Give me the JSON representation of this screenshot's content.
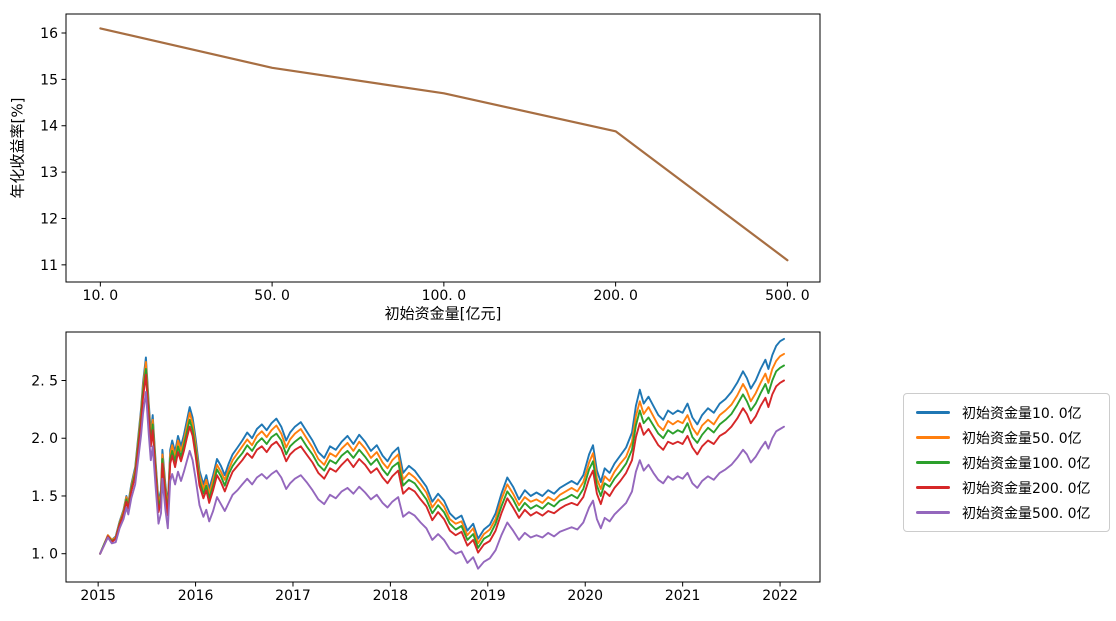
{
  "background": "#ffffff",
  "chart_data": [
    {
      "id": "annualized-return-vs-initial-capital",
      "type": "line",
      "title": "",
      "xlabel": "初始资金量[亿元]",
      "ylabel": "年化收益率[%]",
      "categories": [
        10.0,
        50.0,
        100.0,
        200.0,
        500.0
      ],
      "x_tick_labels": [
        "10. 0",
        "50. 0",
        "100. 0",
        "200. 0",
        "500. 0"
      ],
      "values": [
        16.1,
        15.25,
        14.7,
        13.88,
        11.1
      ],
      "line_color": "#a76e42",
      "yticks": [
        11,
        12,
        13,
        14,
        15,
        16
      ],
      "ylim": [
        10.63,
        16.41
      ],
      "xlim_index": [
        -0.2,
        4.19
      ],
      "grid": false,
      "legend_position": "none"
    },
    {
      "id": "cumulative-net-value-by-initial-capital",
      "type": "line",
      "title": "",
      "xlabel": "",
      "ylabel": "",
      "x": [
        2015.02,
        2015.06,
        2015.1,
        2015.14,
        2015.18,
        2015.22,
        2015.26,
        2015.29,
        2015.31,
        2015.34,
        2015.38,
        2015.41,
        2015.44,
        2015.46,
        2015.49,
        2015.52,
        2015.54,
        2015.56,
        2015.59,
        2015.62,
        2015.645,
        2015.66,
        2015.69,
        2015.715,
        2015.74,
        2015.76,
        2015.79,
        2015.82,
        2015.85,
        2015.88,
        2015.91,
        2015.94,
        2015.97,
        2016.0,
        2016.04,
        2016.08,
        2016.11,
        2016.14,
        2016.18,
        2016.22,
        2016.26,
        2016.3,
        2016.34,
        2016.38,
        2016.43,
        2016.48,
        2016.53,
        2016.58,
        2016.63,
        2016.68,
        2016.73,
        2016.78,
        2016.83,
        2016.88,
        2016.93,
        2016.97,
        2017.02,
        2017.08,
        2017.14,
        2017.2,
        2017.26,
        2017.32,
        2017.38,
        2017.44,
        2017.5,
        2017.56,
        2017.62,
        2017.68,
        2017.74,
        2017.8,
        2017.86,
        2017.92,
        2017.97,
        2018.02,
        2018.08,
        2018.13,
        2018.19,
        2018.25,
        2018.31,
        2018.37,
        2018.43,
        2018.49,
        2018.55,
        2018.61,
        2018.67,
        2018.73,
        2018.79,
        2018.85,
        2018.9,
        2018.96,
        2019.02,
        2019.08,
        2019.14,
        2019.2,
        2019.26,
        2019.32,
        2019.38,
        2019.44,
        2019.5,
        2019.56,
        2019.62,
        2019.68,
        2019.74,
        2019.8,
        2019.86,
        2019.92,
        2019.98,
        2020.04,
        2020.08,
        2020.12,
        2020.16,
        2020.2,
        2020.25,
        2020.3,
        2020.36,
        2020.42,
        2020.48,
        2020.52,
        2020.56,
        2020.6,
        2020.65,
        2020.7,
        2020.75,
        2020.8,
        2020.85,
        2020.9,
        2020.95,
        2021.0,
        2021.05,
        2021.1,
        2021.15,
        2021.2,
        2021.26,
        2021.32,
        2021.38,
        2021.44,
        2021.5,
        2021.56,
        2021.62,
        2021.66,
        2021.7,
        2021.75,
        2021.8,
        2021.85,
        2021.88,
        2021.92,
        2021.96,
        2022.0,
        2022.04
      ],
      "series": [
        {
          "name": "初始资金量10. 0亿",
          "color": "#1f77b4",
          "values": [
            1.0,
            1.08,
            1.16,
            1.12,
            1.15,
            1.28,
            1.38,
            1.5,
            1.44,
            1.6,
            1.75,
            2.0,
            2.25,
            2.48,
            2.7,
            2.3,
            2.05,
            2.2,
            1.8,
            1.45,
            1.55,
            1.9,
            1.6,
            1.42,
            1.9,
            1.98,
            1.88,
            2.02,
            1.93,
            2.03,
            2.15,
            2.27,
            2.18,
            2.0,
            1.72,
            1.6,
            1.68,
            1.56,
            1.68,
            1.82,
            1.76,
            1.68,
            1.78,
            1.86,
            1.92,
            1.98,
            2.05,
            2.0,
            2.08,
            2.12,
            2.07,
            2.13,
            2.17,
            2.1,
            1.98,
            2.05,
            2.1,
            2.14,
            2.06,
            1.98,
            1.88,
            1.83,
            1.93,
            1.9,
            1.97,
            2.02,
            1.95,
            2.03,
            1.97,
            1.89,
            1.94,
            1.85,
            1.8,
            1.87,
            1.92,
            1.7,
            1.76,
            1.72,
            1.65,
            1.58,
            1.45,
            1.52,
            1.46,
            1.35,
            1.3,
            1.33,
            1.2,
            1.26,
            1.13,
            1.21,
            1.25,
            1.35,
            1.52,
            1.66,
            1.58,
            1.47,
            1.55,
            1.5,
            1.53,
            1.5,
            1.55,
            1.52,
            1.57,
            1.6,
            1.63,
            1.6,
            1.68,
            1.86,
            1.94,
            1.72,
            1.62,
            1.74,
            1.7,
            1.78,
            1.85,
            1.92,
            2.05,
            2.28,
            2.42,
            2.3,
            2.36,
            2.28,
            2.2,
            2.16,
            2.24,
            2.21,
            2.24,
            2.22,
            2.3,
            2.18,
            2.12,
            2.2,
            2.26,
            2.22,
            2.3,
            2.34,
            2.4,
            2.48,
            2.58,
            2.52,
            2.43,
            2.5,
            2.6,
            2.68,
            2.6,
            2.72,
            2.8,
            2.84,
            2.86
          ]
        },
        {
          "name": "初始资金量50. 0亿",
          "color": "#ff7f0e",
          "values": [
            1.0,
            1.08,
            1.16,
            1.12,
            1.14,
            1.27,
            1.37,
            1.49,
            1.43,
            1.58,
            1.73,
            1.97,
            2.22,
            2.44,
            2.66,
            2.26,
            2.02,
            2.16,
            1.77,
            1.42,
            1.52,
            1.86,
            1.57,
            1.39,
            1.86,
            1.94,
            1.84,
            1.98,
            1.89,
            1.98,
            2.1,
            2.22,
            2.13,
            1.95,
            1.68,
            1.56,
            1.64,
            1.52,
            1.64,
            1.77,
            1.71,
            1.64,
            1.73,
            1.81,
            1.87,
            1.93,
            1.99,
            1.94,
            2.02,
            2.06,
            2.01,
            2.07,
            2.11,
            2.04,
            1.92,
            1.99,
            2.04,
            2.08,
            2.0,
            1.92,
            1.82,
            1.77,
            1.87,
            1.84,
            1.91,
            1.96,
            1.89,
            1.97,
            1.91,
            1.83,
            1.88,
            1.79,
            1.74,
            1.81,
            1.86,
            1.64,
            1.7,
            1.66,
            1.6,
            1.53,
            1.4,
            1.47,
            1.41,
            1.3,
            1.26,
            1.28,
            1.16,
            1.22,
            1.09,
            1.17,
            1.21,
            1.3,
            1.47,
            1.6,
            1.52,
            1.42,
            1.49,
            1.45,
            1.47,
            1.44,
            1.49,
            1.46,
            1.51,
            1.54,
            1.57,
            1.54,
            1.62,
            1.79,
            1.87,
            1.65,
            1.56,
            1.67,
            1.63,
            1.71,
            1.78,
            1.84,
            1.97,
            2.19,
            2.32,
            2.21,
            2.27,
            2.19,
            2.11,
            2.07,
            2.15,
            2.12,
            2.15,
            2.13,
            2.2,
            2.09,
            2.03,
            2.11,
            2.16,
            2.12,
            2.2,
            2.24,
            2.29,
            2.37,
            2.47,
            2.41,
            2.32,
            2.39,
            2.48,
            2.56,
            2.48,
            2.6,
            2.67,
            2.71,
            2.73
          ]
        },
        {
          "name": "初始资金量100. 0亿",
          "color": "#2ca02c",
          "values": [
            1.0,
            1.08,
            1.15,
            1.11,
            1.13,
            1.26,
            1.35,
            1.47,
            1.41,
            1.56,
            1.7,
            1.94,
            2.18,
            2.4,
            2.6,
            2.22,
            1.97,
            2.12,
            1.73,
            1.39,
            1.49,
            1.82,
            1.53,
            1.36,
            1.82,
            1.89,
            1.8,
            1.93,
            1.84,
            1.94,
            2.05,
            2.16,
            2.07,
            1.9,
            1.63,
            1.52,
            1.59,
            1.48,
            1.59,
            1.73,
            1.67,
            1.59,
            1.69,
            1.76,
            1.82,
            1.87,
            1.94,
            1.89,
            1.96,
            2.0,
            1.95,
            2.01,
            2.04,
            1.98,
            1.86,
            1.93,
            1.97,
            2.01,
            1.93,
            1.86,
            1.77,
            1.72,
            1.81,
            1.78,
            1.85,
            1.89,
            1.83,
            1.9,
            1.84,
            1.77,
            1.82,
            1.73,
            1.68,
            1.75,
            1.79,
            1.59,
            1.64,
            1.61,
            1.54,
            1.47,
            1.35,
            1.42,
            1.36,
            1.26,
            1.21,
            1.24,
            1.12,
            1.17,
            1.05,
            1.13,
            1.16,
            1.26,
            1.41,
            1.54,
            1.47,
            1.37,
            1.44,
            1.39,
            1.42,
            1.39,
            1.44,
            1.41,
            1.46,
            1.48,
            1.51,
            1.48,
            1.56,
            1.73,
            1.8,
            1.59,
            1.5,
            1.61,
            1.58,
            1.65,
            1.71,
            1.78,
            1.9,
            2.11,
            2.24,
            2.13,
            2.18,
            2.11,
            2.04,
            2.0,
            2.07,
            2.04,
            2.07,
            2.05,
            2.13,
            2.01,
            1.96,
            2.03,
            2.09,
            2.05,
            2.12,
            2.16,
            2.21,
            2.29,
            2.38,
            2.32,
            2.24,
            2.3,
            2.39,
            2.47,
            2.39,
            2.5,
            2.58,
            2.61,
            2.63
          ]
        },
        {
          "name": "初始资金量200. 0亿",
          "color": "#d62728",
          "values": [
            1.0,
            1.07,
            1.15,
            1.1,
            1.13,
            1.25,
            1.34,
            1.45,
            1.39,
            1.54,
            1.67,
            1.9,
            2.13,
            2.35,
            2.55,
            2.17,
            1.93,
            2.07,
            1.69,
            1.36,
            1.45,
            1.78,
            1.5,
            1.33,
            1.78,
            1.85,
            1.75,
            1.88,
            1.8,
            1.89,
            2.0,
            2.1,
            2.02,
            1.85,
            1.59,
            1.48,
            1.55,
            1.44,
            1.55,
            1.68,
            1.62,
            1.54,
            1.63,
            1.71,
            1.76,
            1.81,
            1.87,
            1.83,
            1.9,
            1.93,
            1.88,
            1.94,
            1.97,
            1.91,
            1.8,
            1.86,
            1.9,
            1.93,
            1.86,
            1.79,
            1.7,
            1.65,
            1.74,
            1.71,
            1.77,
            1.82,
            1.75,
            1.82,
            1.77,
            1.7,
            1.74,
            1.66,
            1.61,
            1.67,
            1.72,
            1.52,
            1.57,
            1.54,
            1.47,
            1.41,
            1.29,
            1.36,
            1.3,
            1.2,
            1.16,
            1.19,
            1.07,
            1.12,
            1.01,
            1.08,
            1.11,
            1.2,
            1.35,
            1.48,
            1.4,
            1.31,
            1.38,
            1.33,
            1.36,
            1.33,
            1.37,
            1.35,
            1.39,
            1.42,
            1.44,
            1.42,
            1.49,
            1.65,
            1.72,
            1.52,
            1.43,
            1.54,
            1.5,
            1.57,
            1.63,
            1.7,
            1.81,
            2.01,
            2.13,
            2.03,
            2.08,
            2.01,
            1.94,
            1.9,
            1.97,
            1.95,
            1.97,
            1.95,
            2.02,
            1.92,
            1.86,
            1.93,
            1.98,
            1.95,
            2.02,
            2.05,
            2.1,
            2.17,
            2.26,
            2.21,
            2.13,
            2.19,
            2.28,
            2.35,
            2.27,
            2.38,
            2.45,
            2.48,
            2.5
          ]
        },
        {
          "name": "初始资金量500. 0亿",
          "color": "#9467bd",
          "values": [
            1.0,
            1.07,
            1.14,
            1.09,
            1.1,
            1.22,
            1.3,
            1.4,
            1.34,
            1.48,
            1.6,
            1.81,
            2.02,
            2.21,
            2.4,
            2.03,
            1.81,
            1.93,
            1.58,
            1.26,
            1.35,
            1.65,
            1.38,
            1.22,
            1.63,
            1.69,
            1.6,
            1.71,
            1.63,
            1.71,
            1.8,
            1.89,
            1.81,
            1.65,
            1.42,
            1.32,
            1.38,
            1.28,
            1.37,
            1.49,
            1.43,
            1.37,
            1.44,
            1.51,
            1.55,
            1.6,
            1.65,
            1.6,
            1.66,
            1.69,
            1.65,
            1.69,
            1.72,
            1.66,
            1.56,
            1.61,
            1.65,
            1.68,
            1.62,
            1.55,
            1.47,
            1.43,
            1.51,
            1.48,
            1.54,
            1.57,
            1.52,
            1.58,
            1.53,
            1.47,
            1.51,
            1.44,
            1.4,
            1.45,
            1.49,
            1.32,
            1.36,
            1.33,
            1.27,
            1.22,
            1.12,
            1.17,
            1.12,
            1.04,
            1.0,
            1.02,
            0.92,
            0.97,
            0.87,
            0.93,
            0.96,
            1.03,
            1.16,
            1.27,
            1.2,
            1.12,
            1.18,
            1.14,
            1.16,
            1.14,
            1.18,
            1.15,
            1.19,
            1.21,
            1.23,
            1.21,
            1.27,
            1.4,
            1.46,
            1.3,
            1.22,
            1.31,
            1.28,
            1.34,
            1.39,
            1.44,
            1.54,
            1.71,
            1.81,
            1.72,
            1.77,
            1.7,
            1.64,
            1.61,
            1.67,
            1.64,
            1.67,
            1.65,
            1.7,
            1.61,
            1.57,
            1.63,
            1.67,
            1.64,
            1.7,
            1.73,
            1.77,
            1.83,
            1.9,
            1.86,
            1.79,
            1.84,
            1.91,
            1.97,
            1.91,
            2.0,
            2.06,
            2.08,
            2.1
          ]
        }
      ],
      "xticks": [
        2015,
        2016,
        2017,
        2018,
        2019,
        2020,
        2021,
        2022
      ],
      "xtick_labels": [
        "2015",
        "2016",
        "2017",
        "2018",
        "2019",
        "2020",
        "2021",
        "2022"
      ],
      "yticks": [
        1.0,
        1.5,
        2.0,
        2.5
      ],
      "ytick_labels": [
        "1. 0",
        "1. 5",
        "2. 0",
        "2. 5"
      ],
      "ylim": [
        0.755,
        2.92
      ],
      "xlim": [
        2014.67,
        2022.41
      ],
      "grid": false,
      "legend_position": "outside-right"
    }
  ],
  "legend": {
    "border_color": "#cccccc",
    "items": [
      {
        "label": "初始资金量10. 0亿",
        "color": "#1f77b4"
      },
      {
        "label": "初始资金量50. 0亿",
        "color": "#ff7f0e"
      },
      {
        "label": "初始资金量100. 0亿",
        "color": "#2ca02c"
      },
      {
        "label": "初始资金量200. 0亿",
        "color": "#d62728"
      },
      {
        "label": "初始资金量500. 0亿",
        "color": "#9467bd"
      }
    ]
  }
}
